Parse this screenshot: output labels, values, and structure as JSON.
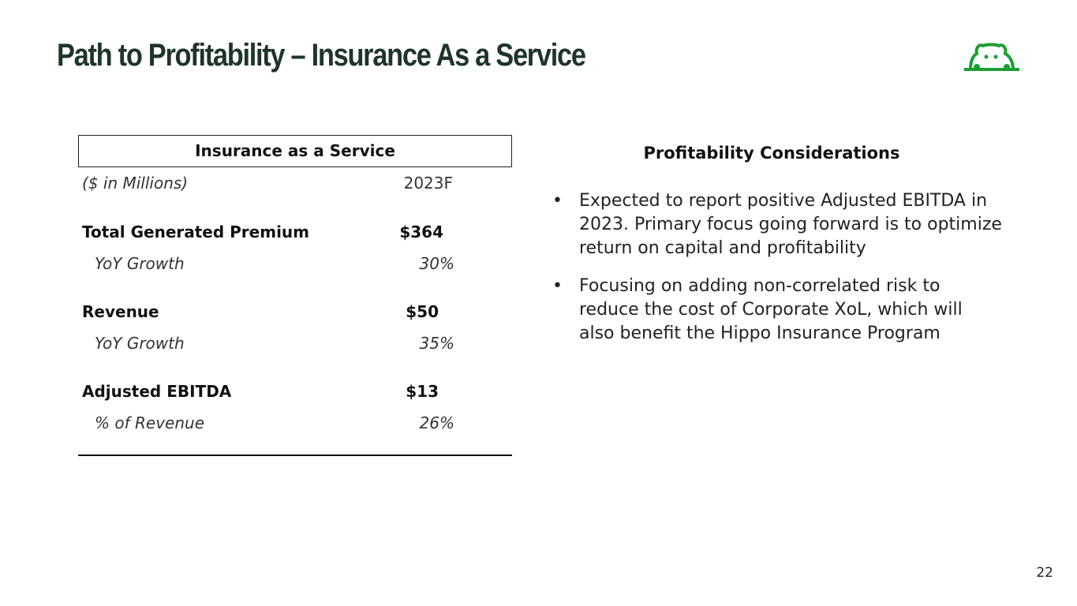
{
  "title": "Path to Profitability – Insurance As a Service",
  "logo": {
    "name": "hippo-logo",
    "color": "#1aa032"
  },
  "table": {
    "header": "Insurance as a Service",
    "unit_label": "($ in Millions)",
    "column": "2023F",
    "rows": [
      {
        "label": "Total Generated Premium",
        "value": "$364",
        "style": "bold"
      },
      {
        "label": "YoY Growth",
        "value": "30%",
        "style": "italic"
      },
      {
        "label": "Revenue",
        "value": "$50",
        "style": "bold"
      },
      {
        "label": "YoY Growth",
        "value": "35%",
        "style": "italic"
      },
      {
        "label": "Adjusted EBITDA",
        "value": "$13",
        "style": "bold"
      },
      {
        "label": "% of Revenue",
        "value": "26%",
        "style": "italic"
      }
    ]
  },
  "considerations": {
    "heading": "Profitability Considerations",
    "bullets": [
      "Expected to report positive Adjusted EBITDA in 2023.  Primary focus going forward is to optimize return on capital and profitability",
      "Focusing on adding non-correlated risk to reduce the cost of Corporate XoL, which will also benefit the Hippo Insurance Program"
    ]
  },
  "page_number": "22"
}
